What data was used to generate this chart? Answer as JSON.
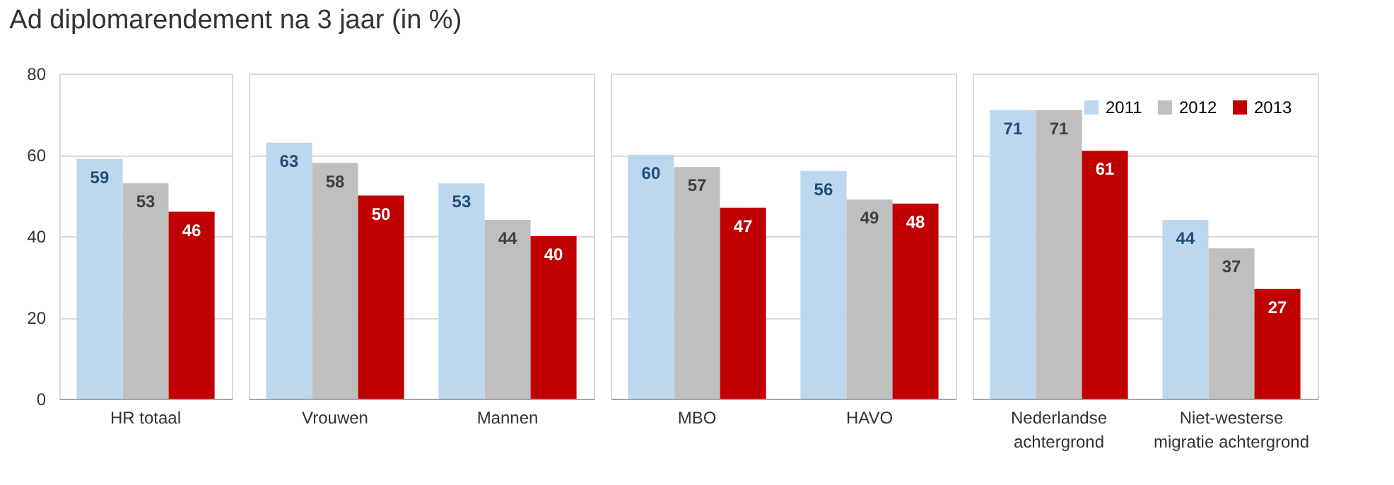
{
  "chart_data": [
    {
      "type": "bar",
      "title": "Ad diplomarendement na 3 jaar (in %)",
      "categories": [
        "HR totaal"
      ],
      "series": [
        {
          "color": "#bdd7ee",
          "values": [
            59
          ]
        },
        {
          "color": "#bfbfbf",
          "values": [
            53
          ]
        },
        {
          "color": "#c00000",
          "values": [
            46
          ]
        }
      ],
      "ylim": [
        0,
        80
      ],
      "yticks": [
        0,
        20,
        40,
        60,
        80
      ],
      "grid": "y",
      "data_labels": true
    },
    {
      "type": "bar",
      "categories": [
        "Vrouwen",
        "Mannen"
      ],
      "series": [
        {
          "color": "#bdd7ee",
          "values": [
            63,
            53
          ]
        },
        {
          "color": "#bfbfbf",
          "values": [
            58,
            44
          ]
        },
        {
          "color": "#c00000",
          "values": [
            50,
            40
          ]
        }
      ],
      "ylim": [
        0,
        80
      ],
      "yticks": [
        0,
        20,
        40,
        60,
        80
      ],
      "grid": "y",
      "tick_labels": "x",
      "data_labels": true
    },
    {
      "type": "bar",
      "categories": [
        "MBO",
        "HAVO"
      ],
      "series": [
        {
          "color": "#bdd7ee",
          "values": [
            60,
            56
          ]
        },
        {
          "color": "#bfbfbf",
          "values": [
            57,
            49
          ]
        },
        {
          "color": "#c00000",
          "values": [
            47,
            48
          ]
        }
      ],
      "ylim": [
        0,
        80
      ],
      "yticks": [
        0,
        20,
        40,
        60,
        80
      ],
      "grid": "y",
      "tick_labels": "x",
      "data_labels": true
    },
    {
      "type": "bar",
      "categories": [
        "Nederlandse achtergrond",
        "Niet-westerse migratie achtergrond"
      ],
      "series": [
        {
          "name": "2011",
          "color": "#bdd7ee",
          "values": [
            71,
            44
          ]
        },
        {
          "name": "2012",
          "color": "#bfbfbf",
          "values": [
            71,
            37
          ]
        },
        {
          "name": "2013",
          "color": "#c00000",
          "values": [
            61,
            27
          ]
        }
      ],
      "ylim": [
        0,
        80
      ],
      "yticks": [
        0,
        20,
        40,
        60,
        80
      ],
      "grid": "y",
      "tick_labels": "x",
      "legend": "top right",
      "data_labels": true
    }
  ]
}
